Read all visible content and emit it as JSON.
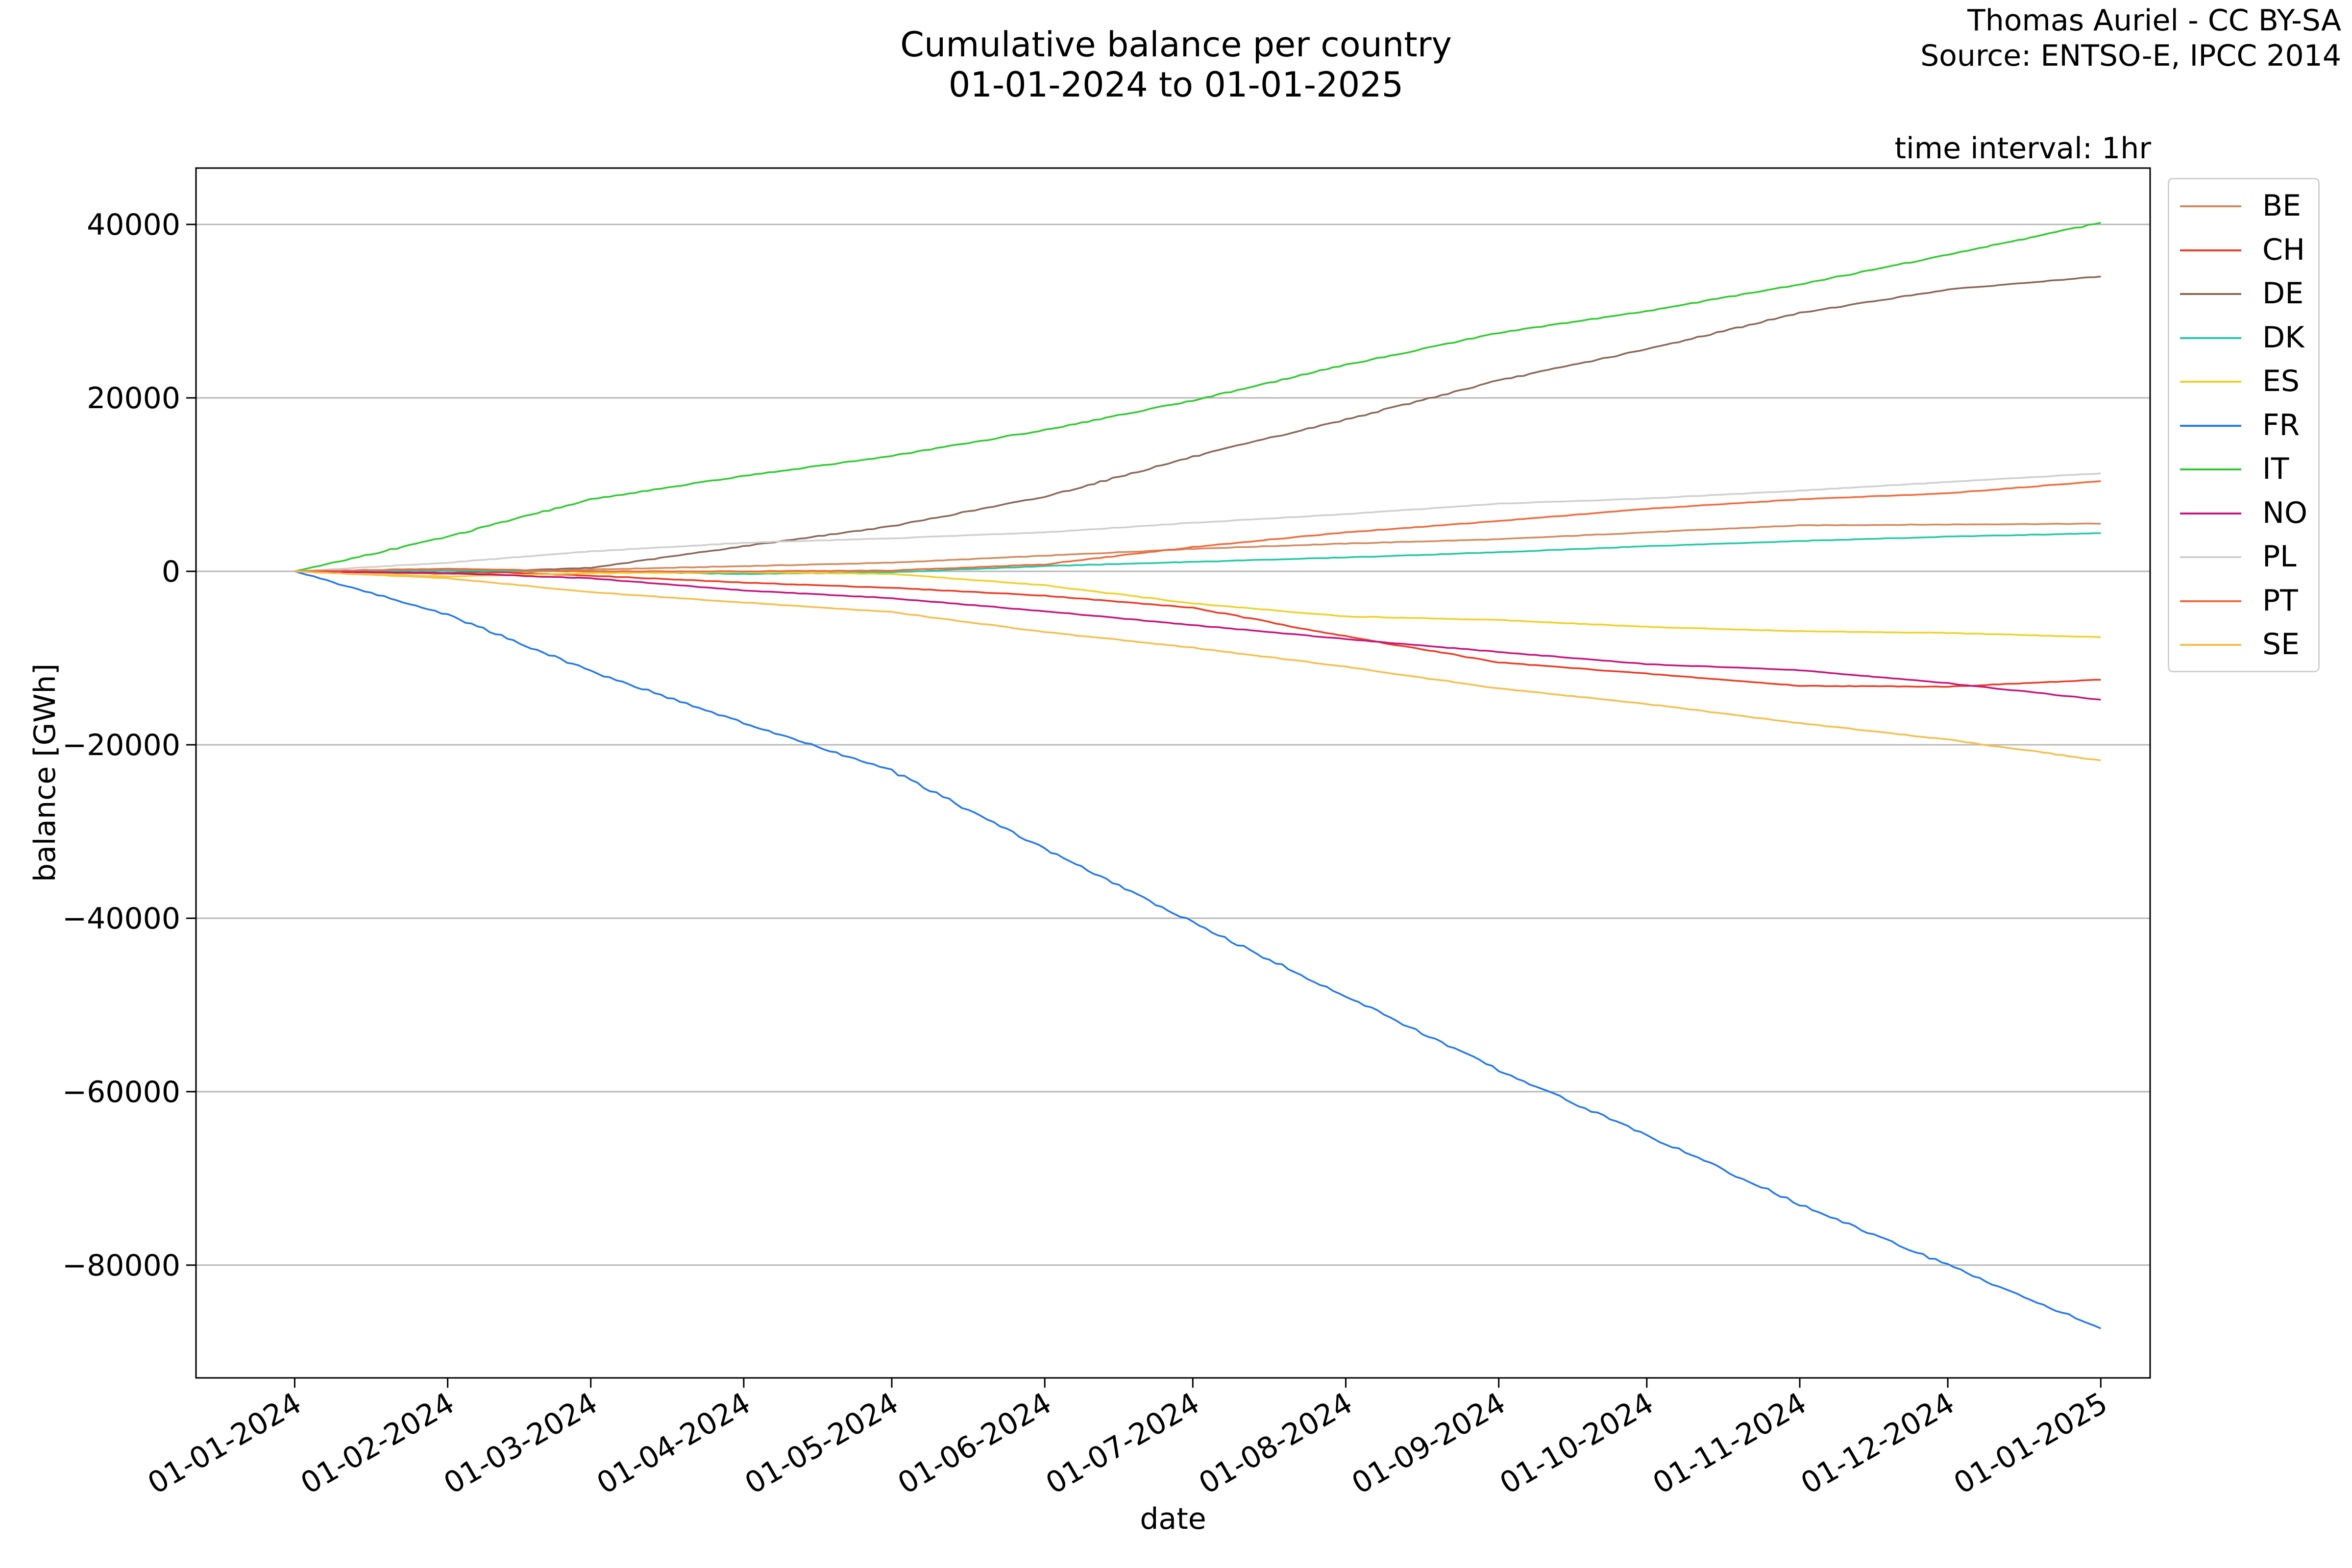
{
  "header": {
    "title_line1": "Cumulative balance per country",
    "title_line2": "01-01-2024 to 01-01-2025",
    "credit_line1": "Thomas Auriel - CC BY-SA",
    "credit_line2": "Source: ENTSO-E, IPCC 2014",
    "interval": "time interval: 1hr"
  },
  "chart_data": {
    "type": "line",
    "title": "Cumulative balance per country\n01-01-2024 to 01-01-2025",
    "xlabel": "date",
    "ylabel": "balance [GWh]",
    "x_ticks": [
      "01-01-2024",
      "01-02-2024",
      "01-03-2024",
      "01-04-2024",
      "01-05-2024",
      "01-06-2024",
      "01-07-2024",
      "01-08-2024",
      "01-09-2024",
      "01-10-2024",
      "01-11-2024",
      "01-12-2024",
      "01-01-2025"
    ],
    "y_ticks": [
      40000,
      20000,
      0,
      -20000,
      -40000,
      -60000,
      -80000
    ],
    "xlim": [
      "2023-12-12",
      "2025-01-11"
    ],
    "ylim": [
      -93000,
      46500
    ],
    "grid": "horizontal",
    "legend_position": "outside-right",
    "x": [
      "01-01-2024",
      "01-02-2024",
      "01-03-2024",
      "01-04-2024",
      "01-05-2024",
      "01-06-2024",
      "01-07-2024",
      "01-08-2024",
      "01-09-2024",
      "01-10-2024",
      "01-11-2024",
      "01-12-2024",
      "01-01-2025"
    ],
    "series": [
      {
        "name": "BE",
        "color": "#d4895e",
        "values": [
          0,
          -300,
          200,
          600,
          1000,
          1800,
          2600,
          3200,
          3700,
          4500,
          5300,
          5400,
          5500
        ]
      },
      {
        "name": "CH",
        "color": "#ee3b24",
        "values": [
          0,
          100,
          -500,
          -1300,
          -1900,
          -2800,
          -4200,
          -7500,
          -10500,
          -11800,
          -13200,
          -13300,
          -12500
        ]
      },
      {
        "name": "DE",
        "color": "#8c6656",
        "values": [
          0,
          -200,
          400,
          2900,
          5200,
          8600,
          13200,
          17500,
          22000,
          25600,
          29800,
          32500,
          34000
        ]
      },
      {
        "name": "DK",
        "color": "#22c9a4",
        "values": [
          0,
          100,
          0,
          -300,
          -100,
          600,
          1100,
          1600,
          2200,
          2900,
          3500,
          4000,
          4400
        ]
      },
      {
        "name": "ES",
        "color": "#f2d026",
        "values": [
          0,
          -600,
          -200,
          -100,
          -300,
          -1600,
          -3700,
          -5200,
          -5600,
          -6400,
          -6900,
          -7100,
          -7600
        ]
      },
      {
        "name": "FR",
        "color": "#1f77f0",
        "values": [
          0,
          -5000,
          -11500,
          -17500,
          -23000,
          -32000,
          -40500,
          -49000,
          -57500,
          -65000,
          -73000,
          -80000,
          -87300
        ]
      },
      {
        "name": "IT",
        "color": "#2fcb2f",
        "values": [
          0,
          4000,
          8300,
          11000,
          13300,
          16300,
          19700,
          23800,
          27500,
          30000,
          33100,
          36500,
          40200
        ]
      },
      {
        "name": "NO",
        "color": "#c8147d",
        "values": [
          0,
          -200,
          -800,
          -2200,
          -3100,
          -4600,
          -6200,
          -7800,
          -9300,
          -10700,
          -11400,
          -12900,
          -14800
        ]
      },
      {
        "name": "PL",
        "color": "#cfcfcf",
        "values": [
          0,
          1000,
          2300,
          3300,
          3800,
          4500,
          5600,
          6600,
          7800,
          8400,
          9300,
          10300,
          11300
        ]
      },
      {
        "name": "PT",
        "color": "#f26a3c",
        "values": [
          0,
          300,
          0,
          0,
          100,
          800,
          2800,
          4500,
          5800,
          7200,
          8300,
          9000,
          10400
        ]
      },
      {
        "name": "SE",
        "color": "#f8bd4a",
        "values": [
          0,
          -800,
          -2400,
          -3600,
          -4700,
          -7000,
          -8800,
          -11000,
          -13500,
          -15300,
          -17500,
          -19400,
          -21800
        ]
      }
    ]
  }
}
